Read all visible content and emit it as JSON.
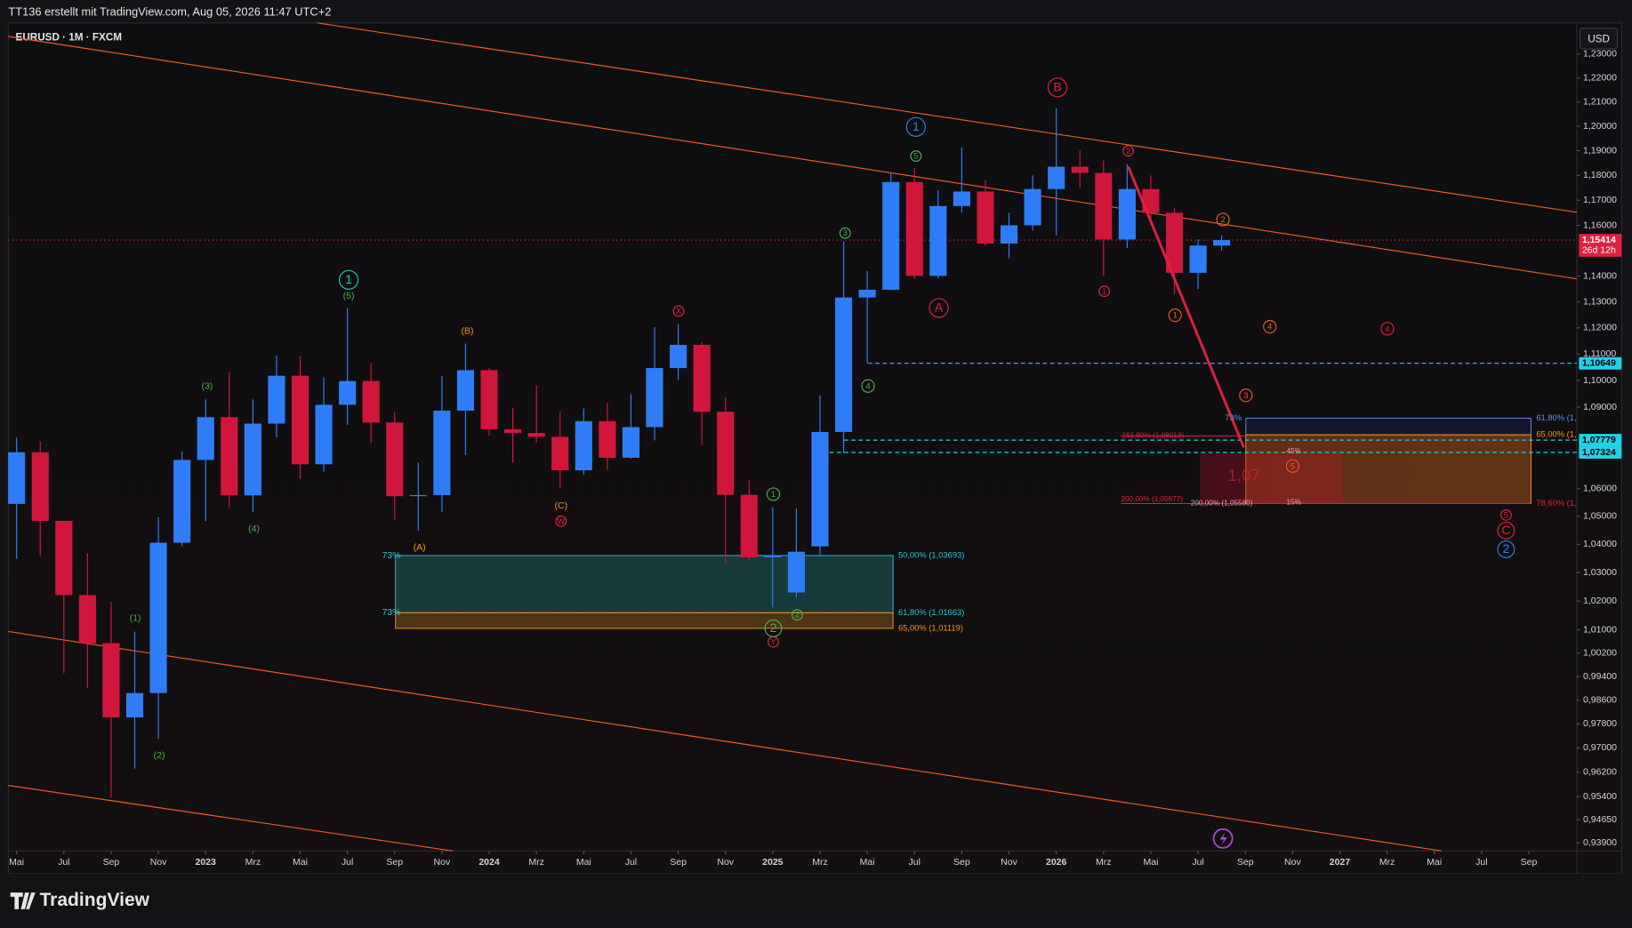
{
  "header": {
    "title": "TT136 erstellt mit TradingView.com, Aug 05, 2026 11:47 UTC+2",
    "symbol": "EURUSD · 1M · FXCM",
    "currency": "USD",
    "brand": "TradingView"
  },
  "chart_data": {
    "type": "candlestick",
    "x": [
      0,
      1,
      2,
      3,
      4,
      5,
      6,
      7,
      8,
      9,
      10,
      11,
      12,
      13,
      14,
      15,
      16,
      17,
      18,
      19,
      20,
      21,
      22,
      23,
      24,
      25,
      26,
      27,
      28,
      29,
      30,
      31,
      32,
      33,
      34,
      35,
      36,
      37,
      38,
      39,
      40,
      41,
      42,
      43,
      44,
      45,
      46,
      47,
      48,
      49,
      50,
      51
    ],
    "open": [
      1.0545,
      1.0733,
      1.0484,
      1.0221,
      1.0054,
      0.9802,
      0.9884,
      1.0406,
      1.0705,
      1.0863,
      1.0576,
      1.0839,
      1.1018,
      1.0689,
      1.0909,
      1.0998,
      1.0843,
      1.0573,
      1.0577,
      1.0887,
      1.1039,
      1.0818,
      1.0804,
      1.079,
      1.0667,
      1.0848,
      1.0713,
      1.0826,
      1.1047,
      1.1135,
      1.0883,
      1.0578,
      1.0354,
      1.023,
      1.0393,
      1.0808,
      1.1317,
      1.1347,
      1.1773,
      1.1401,
      1.1677,
      1.1735,
      1.1528,
      1.16,
      1.1745,
      1.1835,
      1.181,
      1.1544,
      1.1745,
      1.165,
      1.1413,
      1.152
    ],
    "high": [
      1.0787,
      1.0774,
      1.0486,
      1.0368,
      1.0198,
      1.0094,
      1.0497,
      1.0736,
      1.0929,
      1.1033,
      1.0929,
      1.1095,
      1.1092,
      1.1012,
      1.1276,
      1.1065,
      1.0882,
      1.0695,
      1.1017,
      1.114,
      1.1046,
      1.0898,
      1.0981,
      1.0885,
      1.0895,
      1.0916,
      1.0948,
      1.1202,
      1.1214,
      1.1144,
      1.0937,
      1.063,
      1.0533,
      1.0528,
      1.0944,
      1.1536,
      1.142,
      1.181,
      1.183,
      1.174,
      1.1913,
      1.178,
      1.165,
      1.18,
      1.2074,
      1.19,
      1.186,
      1.1845,
      1.18,
      1.167,
      1.1545,
      1.156
    ],
    "low": [
      1.0349,
      1.0359,
      0.9952,
      0.9901,
      0.9536,
      0.9632,
      0.973,
      1.0393,
      1.0483,
      1.0533,
      1.0516,
      1.0788,
      1.0635,
      1.0662,
      1.0834,
      1.0766,
      1.0488,
      1.0448,
      1.0516,
      1.0723,
      1.0795,
      1.0695,
      1.0768,
      1.0601,
      1.065,
      1.0668,
      1.071,
      1.0777,
      1.1002,
      1.0761,
      1.0333,
      1.0343,
      1.0178,
      1.0212,
      1.036,
      1.073,
      1.1065,
      1.1345,
      1.139,
      1.139,
      1.165,
      1.152,
      1.147,
      1.158,
      1.156,
      1.175,
      1.1401,
      1.151,
      1.16,
      1.133,
      1.135,
      1.15
    ],
    "close": [
      1.0733,
      1.0484,
      1.0221,
      1.0054,
      0.9802,
      0.9884,
      1.0406,
      1.0705,
      1.0863,
      1.0576,
      1.0839,
      1.1018,
      1.0689,
      1.0909,
      1.0998,
      1.0843,
      1.0573,
      1.0577,
      1.0887,
      1.1039,
      1.0818,
      1.0804,
      1.079,
      1.0667,
      1.0848,
      1.0713,
      1.0826,
      1.1047,
      1.1135,
      1.0883,
      1.0578,
      1.0354,
      1.0362,
      1.0374,
      1.0808,
      1.1317,
      1.1347,
      1.1773,
      1.1401,
      1.1677,
      1.1735,
      1.1528,
      1.16,
      1.1745,
      1.1835,
      1.181,
      1.1544,
      1.1745,
      1.165,
      1.1413,
      1.152,
      1.15414
    ],
    "up_color": "#2f7df6",
    "down_color": "#d1163b",
    "log_scale": true,
    "grid": false,
    "xlim": [
      -0.35,
      66.03
    ],
    "xticks": [
      {
        "value": 0,
        "label": "Mai"
      },
      {
        "value": 2,
        "label": "Jul"
      },
      {
        "value": 4,
        "label": "Sep"
      },
      {
        "value": 6,
        "label": "Nov"
      },
      {
        "value": 8,
        "label": "2023"
      },
      {
        "value": 10,
        "label": "Mrz"
      },
      {
        "value": 12,
        "label": "Mai"
      },
      {
        "value": 14,
        "label": "Jul"
      },
      {
        "value": 16,
        "label": "Sep"
      },
      {
        "value": 18,
        "label": "Nov"
      },
      {
        "value": 20,
        "label": "2024"
      },
      {
        "value": 22,
        "label": "Mrz"
      },
      {
        "value": 24,
        "label": "Mai"
      },
      {
        "value": 26,
        "label": "Jul"
      },
      {
        "value": 28,
        "label": "Sep"
      },
      {
        "value": 30,
        "label": "Nov"
      },
      {
        "value": 32,
        "label": "2025"
      },
      {
        "value": 34,
        "label": "Mrz"
      },
      {
        "value": 36,
        "label": "Mai"
      },
      {
        "value": 38,
        "label": "Jul"
      },
      {
        "value": 40,
        "label": "Sep"
      },
      {
        "value": 42,
        "label": "Nov"
      },
      {
        "value": 44,
        "label": "2026"
      },
      {
        "value": 46,
        "label": "Mrz"
      },
      {
        "value": 48,
        "label": "Mai"
      },
      {
        "value": 50,
        "label": "Jul"
      },
      {
        "value": 52,
        "label": "Sep"
      },
      {
        "value": 54,
        "label": "Nov"
      },
      {
        "value": 56,
        "label": "2027"
      },
      {
        "value": 58,
        "label": "Mrz"
      },
      {
        "value": 60,
        "label": "Mai"
      },
      {
        "value": 62,
        "label": "Jul"
      },
      {
        "value": 64,
        "label": "Sep"
      }
    ],
    "ylim": [
      0.9364,
      1.2432
    ],
    "yticks": [
      {
        "value": 1.23,
        "label": "1,23000"
      },
      {
        "value": 1.22,
        "label": "1,22000"
      },
      {
        "value": 1.21,
        "label": "1,21000"
      },
      {
        "value": 1.2,
        "label": "1,20000"
      },
      {
        "value": 1.19,
        "label": "1,19000"
      },
      {
        "value": 1.18,
        "label": "1,18000"
      },
      {
        "value": 1.17,
        "label": "1,17000"
      },
      {
        "value": 1.16,
        "label": "1,16000"
      },
      {
        "value": 1.14,
        "label": "1,14000"
      },
      {
        "value": 1.13,
        "label": "1,13000"
      },
      {
        "value": 1.12,
        "label": "1,12000"
      },
      {
        "value": 1.11,
        "label": "1,11000"
      },
      {
        "value": 1.1,
        "label": "1,10000"
      },
      {
        "value": 1.09,
        "label": "1,09000"
      },
      {
        "value": 1.06,
        "label": "1,06000"
      },
      {
        "value": 1.05,
        "label": "1,05000"
      },
      {
        "value": 1.04,
        "label": "1,04000"
      },
      {
        "value": 1.03,
        "label": "1,03000"
      },
      {
        "value": 1.02,
        "label": "1,02000"
      },
      {
        "value": 1.01,
        "label": "1,01000"
      },
      {
        "value": 1.002,
        "label": "1,00200"
      },
      {
        "value": 0.994,
        "label": "0,99400"
      },
      {
        "value": 0.986,
        "label": "0,98600"
      },
      {
        "value": 0.978,
        "label": "0,97800"
      },
      {
        "value": 0.97,
        "label": "0,97000"
      },
      {
        "value": 0.962,
        "label": "0,96200"
      },
      {
        "value": 0.954,
        "label": "0,95400"
      },
      {
        "value": 0.9465,
        "label": "0,94650"
      },
      {
        "value": 0.939,
        "label": "0,93900"
      }
    ],
    "price_lines": [
      {
        "value": 1.15414,
        "label": "1,15414",
        "sublabel": "26d 12h",
        "color": "#e0213f"
      },
      {
        "value": 1.10649,
        "label": "1,10649",
        "color": "#1fd2e8"
      },
      {
        "value": 1.07779,
        "label": "1,07779",
        "color": "#1fd2e8"
      },
      {
        "value": 1.07324,
        "label": "1,07324",
        "color": "#1fd2e8"
      }
    ],
    "annotations": [
      {
        "text": "1",
        "color": "#2cc4a4"
      },
      {
        "text": "(5)",
        "color": "#4caf50"
      },
      {
        "text": "(3)",
        "color": "#4caf50"
      },
      {
        "text": "(4)",
        "color": "#4caf50"
      },
      {
        "text": "(1)",
        "color": "#4caf50"
      },
      {
        "text": "(2)",
        "color": "#4caf50"
      },
      {
        "text": "(B)",
        "color": "#f7931a"
      },
      {
        "text": "(A)",
        "color": "#f7931a"
      },
      {
        "text": "(C)",
        "color": "#f7931a"
      },
      {
        "text": "W",
        "color": "#e0213f"
      },
      {
        "text": "X",
        "color": "#e0213f"
      },
      {
        "text": "Y",
        "color": "#e0213f"
      },
      {
        "text": "2",
        "color": "#4caf50"
      },
      {
        "text": "1",
        "color": "#4caf50"
      },
      {
        "text": "2",
        "color": "#4caf50"
      },
      {
        "text": "3",
        "color": "#4caf50"
      },
      {
        "text": "4",
        "color": "#4caf50"
      },
      {
        "text": "5",
        "color": "#4caf50"
      },
      {
        "text": "1",
        "color": "#2f7df6"
      },
      {
        "text": "B",
        "color": "#e0213f"
      },
      {
        "text": "A",
        "color": "#e0213f"
      },
      {
        "text": "2",
        "color": "#e0213f"
      },
      {
        "text": "1",
        "color": "#e0213f"
      },
      {
        "text": "2",
        "color": "#f2552c"
      },
      {
        "text": "1",
        "color": "#f2552c"
      },
      {
        "text": "3",
        "color": "#f2552c"
      },
      {
        "text": "4",
        "color": "#f2552c"
      },
      {
        "text": "5",
        "color": "#f2552c"
      },
      {
        "text": "4",
        "color": "#e0213f"
      },
      {
        "text": "5",
        "color": "#e0213f"
      },
      {
        "text": "C",
        "color": "#e0213f"
      },
      {
        "text": "2",
        "color": "#2f7df6"
      }
    ],
    "fib_labels": [
      {
        "text": "73%",
        "color": "#26c6da"
      },
      {
        "text": "73%",
        "color": "#26c6da"
      },
      {
        "text": "50,00% (1,03693)",
        "color": "#26c6da"
      },
      {
        "text": "61,80% (1,01663)",
        "color": "#26c6da"
      },
      {
        "text": "65,00% (1,01119)",
        "color": "#f7931a"
      },
      {
        "text": "73%",
        "color": "#5b8def"
      },
      {
        "text": "61,80% (1,",
        "color": "#5b8def"
      },
      {
        "text": "65,00% (1,",
        "color": "#f7931a"
      },
      {
        "text": "78,60% (1,",
        "color": "#e0213f"
      },
      {
        "text": "161,80% (1,08013)",
        "color": "#e0213f"
      },
      {
        "text": "200,00% (1,05677)",
        "color": "#e0213f"
      },
      {
        "text": "200,00% (1,05580)",
        "color": "#f0a0a8"
      },
      {
        "text": "45%",
        "color": "#f0a0a8"
      },
      {
        "text": "15%",
        "color": "#f0a0a8"
      },
      {
        "text": "1,07",
        "color": "#e0213f"
      }
    ]
  }
}
